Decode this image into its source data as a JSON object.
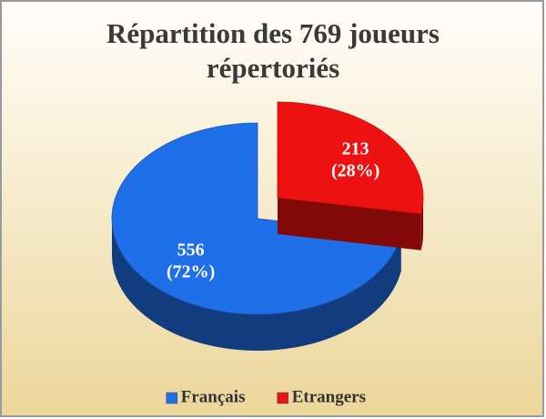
{
  "chart_data": {
    "type": "pie",
    "title": "Répartition des 769 joueurs répertoriés",
    "categories": [
      "Français",
      "Etrangers"
    ],
    "values": [
      556,
      213
    ],
    "value_labels": [
      "556 (72%)",
      "213 (28%)"
    ],
    "colors": [
      "#1f6fe8",
      "#ee1111"
    ],
    "legend": "bottom"
  }
}
